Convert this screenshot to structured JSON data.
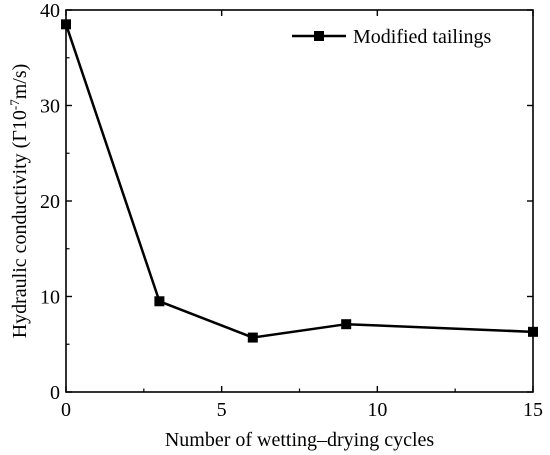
{
  "chart_data": {
    "type": "line",
    "xlabel": "Number of wetting–drying cycles",
    "ylabel_prefix": "Hydraulic conductivity (Γ10",
    "ylabel_exp": "-7",
    "ylabel_suffix": "m/s)",
    "xlim": [
      0,
      15
    ],
    "ylim": [
      0,
      40
    ],
    "x_ticks": [
      0,
      5,
      10,
      15
    ],
    "y_ticks": [
      0,
      10,
      20,
      30,
      40
    ],
    "grid": false,
    "legend_position": "top-right",
    "series": [
      {
        "name": "Modified tailings",
        "color": "#000000",
        "marker": "square",
        "x": [
          0,
          3,
          6,
          9,
          15
        ],
        "values": [
          38.5,
          9.5,
          5.7,
          7.1,
          6.3
        ]
      }
    ]
  }
}
